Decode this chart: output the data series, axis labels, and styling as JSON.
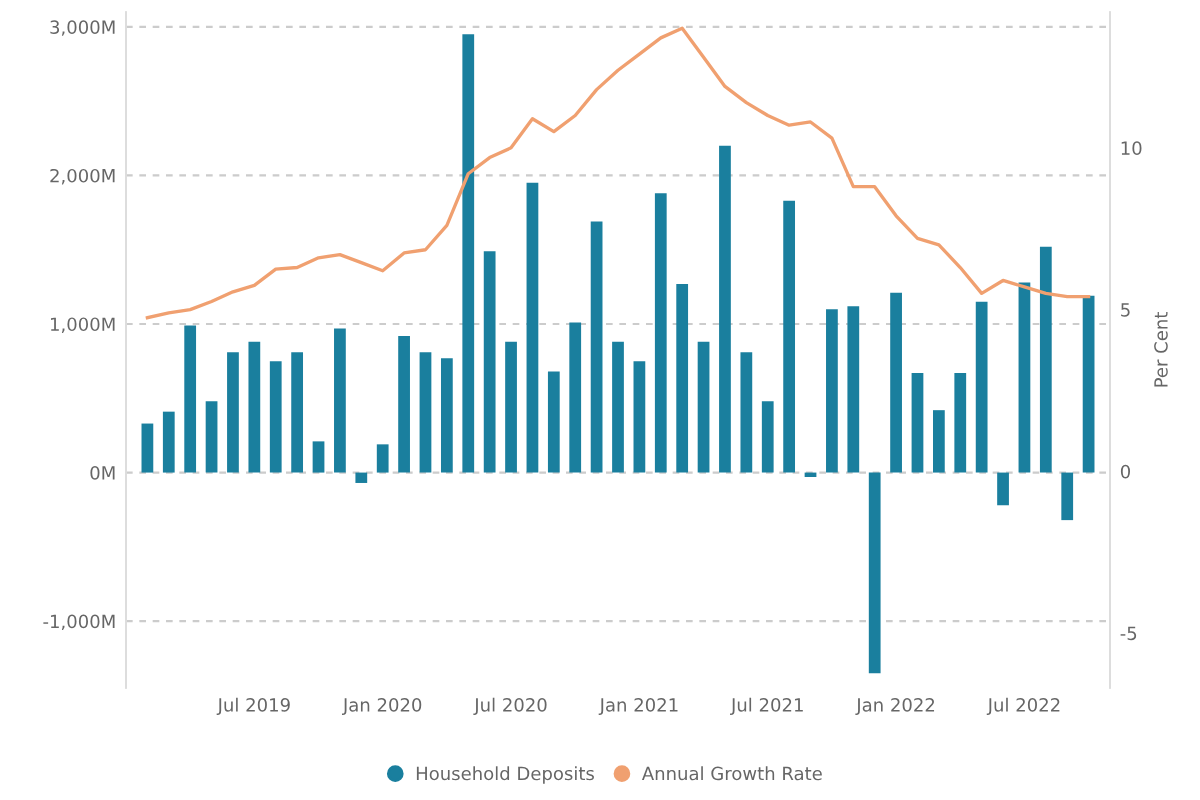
{
  "chart_data": {
    "type": "bar",
    "x": [
      "2019-02",
      "2019-03",
      "2019-04",
      "2019-05",
      "2019-06",
      "2019-07",
      "2019-08",
      "2019-09",
      "2019-10",
      "2019-11",
      "2019-12",
      "2020-01",
      "2020-02",
      "2020-03",
      "2020-04",
      "2020-05",
      "2020-06",
      "2020-07",
      "2020-08",
      "2020-09",
      "2020-10",
      "2020-11",
      "2020-12",
      "2021-01",
      "2021-02",
      "2021-03",
      "2021-04",
      "2021-05",
      "2021-06",
      "2021-07",
      "2021-08",
      "2021-09",
      "2021-10",
      "2021-11",
      "2021-12",
      "2022-01",
      "2022-02",
      "2022-03",
      "2022-04",
      "2022-05",
      "2022-06",
      "2022-07",
      "2022-08",
      "2022-09",
      "2022-10"
    ],
    "series": [
      {
        "name": "Household Deposits",
        "color": "#1a7f9e",
        "values": [
          330,
          410,
          990,
          480,
          810,
          880,
          750,
          810,
          210,
          970,
          -70,
          190,
          920,
          810,
          770,
          2950,
          1490,
          880,
          1950,
          680,
          1010,
          1690,
          880,
          750,
          1880,
          1270,
          880,
          2200,
          810,
          480,
          1830,
          -30,
          1100,
          1120,
          -1350,
          1210,
          670,
          420,
          670,
          1150,
          -220,
          1280,
          1520,
          -320,
          1190
        ]
      },
      {
        "name": "Annual Growth Rate",
        "type": "line",
        "axis": "y2",
        "color": "#f0a070",
        "values": [
          4.75,
          4.9,
          5.0,
          5.25,
          5.55,
          5.75,
          6.25,
          6.3,
          6.6,
          6.7,
          6.45,
          6.2,
          6.75,
          6.85,
          7.6,
          9.2,
          9.7,
          10.0,
          10.9,
          10.5,
          11.0,
          11.8,
          12.4,
          12.9,
          13.4,
          13.7,
          12.8,
          11.9,
          11.4,
          11.0,
          10.7,
          10.8,
          10.3,
          8.8,
          8.8,
          7.9,
          7.2,
          7.0,
          6.3,
          5.5,
          5.9,
          5.7,
          5.5,
          5.4,
          5.4
        ]
      }
    ],
    "xlim": [
      "2019-01",
      "2022-11"
    ],
    "xticks": [
      {
        "value": "2019-07",
        "label": "Jul 2019"
      },
      {
        "value": "2020-01",
        "label": "Jan 2020"
      },
      {
        "value": "2020-07",
        "label": "Jul 2020"
      },
      {
        "value": "2021-01",
        "label": "Jan 2021"
      },
      {
        "value": "2021-07",
        "label": "Jul 2021"
      },
      {
        "value": "2022-01",
        "label": "Jan 2022"
      },
      {
        "value": "2022-07",
        "label": "Jul 2022"
      }
    ],
    "ylim": [
      -1450,
      3100
    ],
    "yticks": [
      {
        "value": -1000,
        "label": "-1,000M"
      },
      {
        "value": 0,
        "label": "0M"
      },
      {
        "value": 1000,
        "label": "1,000M"
      },
      {
        "value": 2000,
        "label": "2,000M"
      },
      {
        "value": 3000,
        "label": "3,000M"
      }
    ],
    "y2lim": [
      -6.7,
      14.2
    ],
    "y2ticks": [
      -5,
      0,
      5,
      10
    ],
    "y2label": "Per Cent",
    "grid": "y",
    "legend": "bottom",
    "marker": "none",
    "line_style": "solid"
  }
}
